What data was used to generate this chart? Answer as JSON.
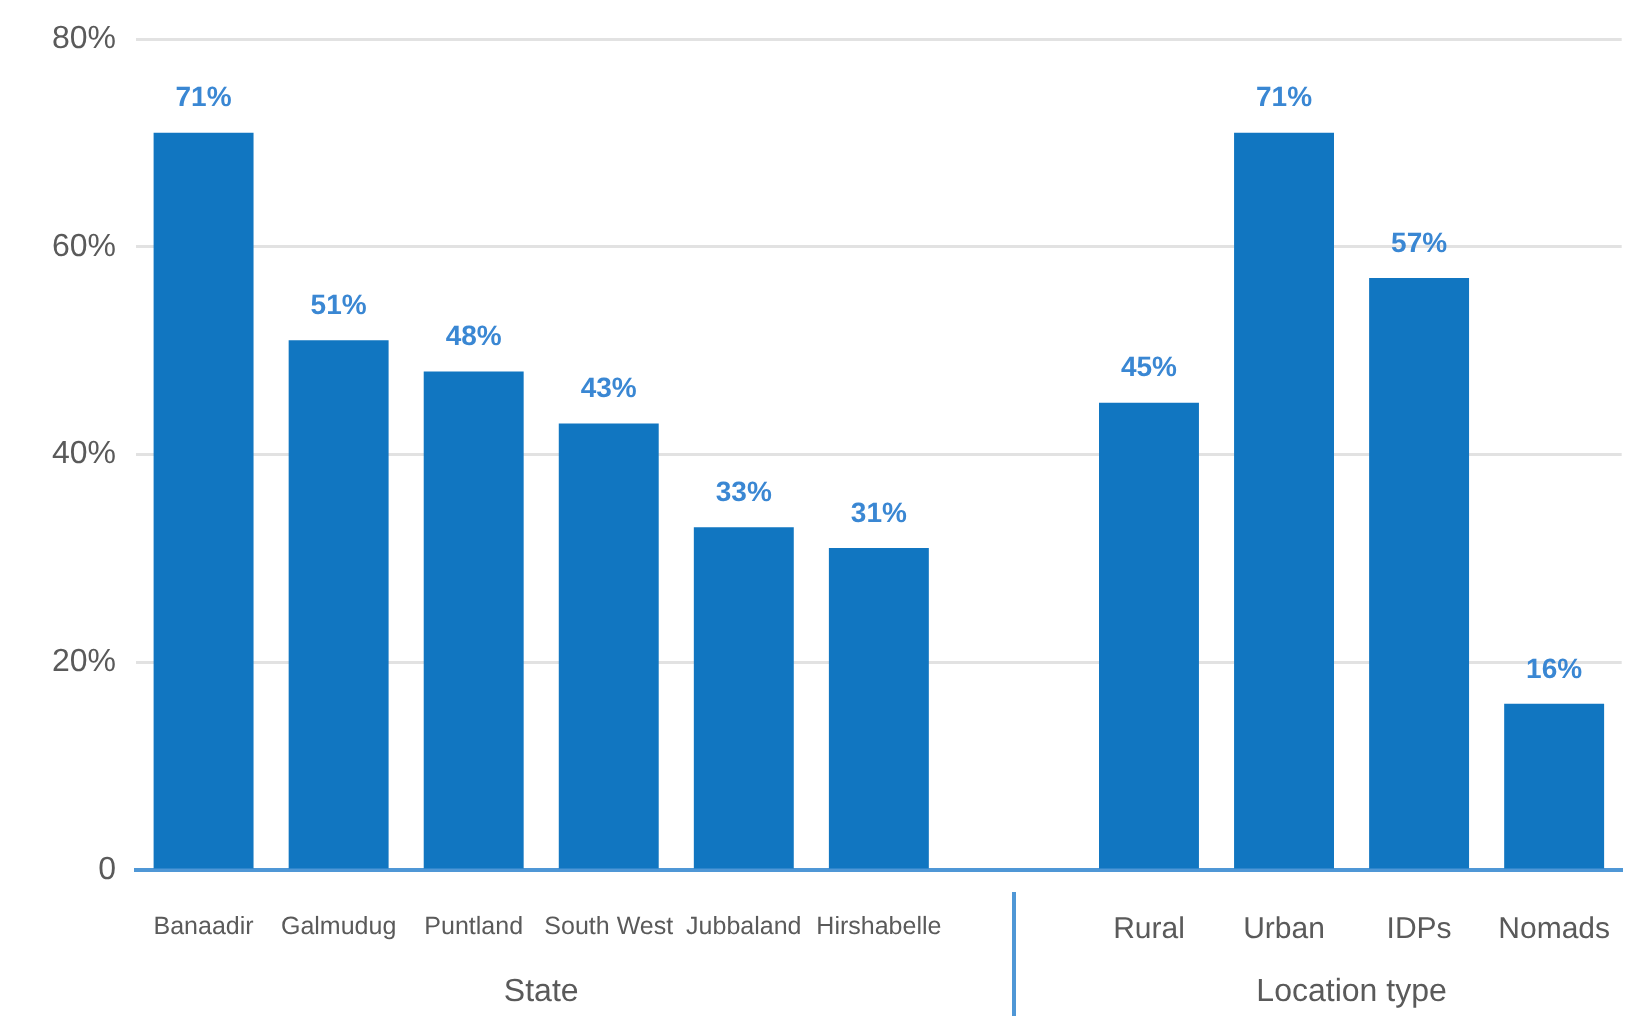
{
  "chart_data": {
    "type": "bar",
    "categories": [
      "Banaadir",
      "Galmudug",
      "Puntland",
      "South West",
      "Jubbaland",
      "Hirshabelle",
      null,
      "Rural",
      "Urban",
      "IDPs",
      "Nomads"
    ],
    "values": [
      71,
      51,
      48,
      43,
      33,
      31,
      null,
      45,
      71,
      57,
      16
    ],
    "value_labels": [
      "71%",
      "51%",
      "48%",
      "43%",
      "33%",
      "31%",
      null,
      "45%",
      "71%",
      "57%",
      "16%"
    ],
    "color": "#1176c1",
    "ylim": [
      0,
      80
    ],
    "yticks": [
      0,
      {
        "value": 20,
        "label": "20%"
      },
      {
        "value": 40,
        "label": "40%"
      },
      {
        "value": 60,
        "label": "60%"
      },
      {
        "value": 80,
        "label": "80%"
      }
    ],
    "grid": "y",
    "annotations": [
      "State",
      "Location type"
    ]
  }
}
